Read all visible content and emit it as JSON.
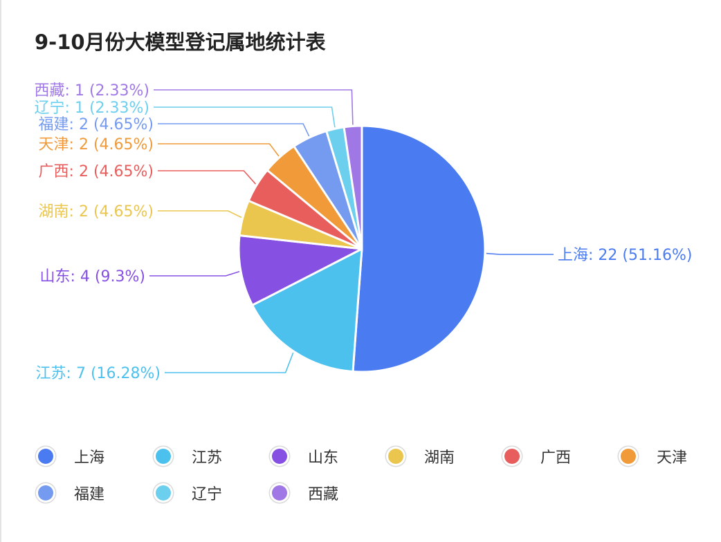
{
  "chart_data": {
    "type": "pie",
    "title": "9-10月份大模型登记属地统计表",
    "categories": [
      "上海",
      "江苏",
      "山东",
      "湖南",
      "广西",
      "天津",
      "福建",
      "辽宁",
      "西藏"
    ],
    "values": [
      22,
      7,
      4,
      2,
      2,
      2,
      2,
      1,
      1
    ],
    "percents": [
      "51.16%",
      "16.28%",
      "9.3%",
      "4.65%",
      "4.65%",
      "4.65%",
      "4.65%",
      "2.33%",
      "2.33%"
    ],
    "labels": [
      "上海: 22 (51.16%)",
      "江苏: 7 (16.28%)",
      "山东: 4 (9.3%)",
      "湖南: 2 (4.65%)",
      "广西: 2 (4.65%)",
      "天津: 2 (4.65%)",
      "福建: 2 (4.65%)",
      "辽宁: 1 (2.33%)",
      "西藏: 1 (2.33%)"
    ],
    "colors": [
      "#4A7BF0",
      "#4DC1EE",
      "#8650E3",
      "#EBC64E",
      "#E85E5C",
      "#F09A3A",
      "#759BF0",
      "#6DCFEE",
      "#A078E6"
    ],
    "legend_position": "bottom",
    "start_angle": "top",
    "direction": "clockwise"
  }
}
